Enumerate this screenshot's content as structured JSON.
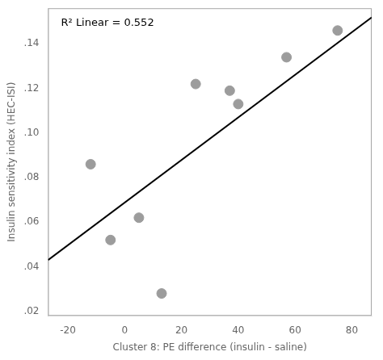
{
  "chart_data": {
    "type": "scatter",
    "xlabel": "Cluster 8: PE difference (insulin - saline)",
    "ylabel": "Insulin sensitivity index (HEC-ISI)",
    "annotation": "R² Linear = 0.552",
    "series": [
      {
        "type": "line",
        "color": "#000000",
        "x": [
          -27,
          87
        ],
        "values": [
          0.043015,
          0.151885
        ]
      },
      {
        "type": "scatter",
        "color": "#9c9c9c",
        "x": [
          -12,
          -5,
          5,
          13,
          25,
          37,
          40,
          57,
          75
        ],
        "values": [
          0.086,
          0.052,
          0.062,
          0.028,
          0.122,
          0.119,
          0.113,
          0.134,
          0.146
        ]
      }
    ],
    "xlim": [
      -27,
      87
    ],
    "ylim": [
      0.018,
      0.156
    ],
    "xticks": [
      -20,
      0,
      20,
      40,
      60,
      80
    ],
    "yticks": [
      {
        "value": 0.02,
        "label": ".02"
      },
      {
        "value": 0.04,
        "label": ".04"
      },
      {
        "value": 0.06,
        "label": ".06"
      },
      {
        "value": 0.08,
        "label": ".08"
      },
      {
        "value": 0.1,
        "label": ".10"
      },
      {
        "value": 0.12,
        "label": ".12"
      },
      {
        "value": 0.14,
        "label": ".14"
      }
    ],
    "grid": false
  }
}
